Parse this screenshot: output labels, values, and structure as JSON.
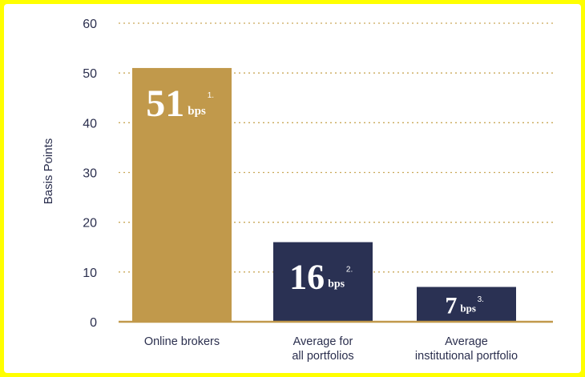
{
  "colors": {
    "border": "#ffff00",
    "gold": "#c1994b",
    "navy": "#2a3153",
    "text": "#2b2f4e",
    "grid": "#c9a857"
  },
  "chart_data": {
    "type": "bar",
    "ylabel": "Basis Points",
    "ylim": [
      0,
      60
    ],
    "yticks": [
      0,
      10,
      20,
      30,
      40,
      50,
      60
    ],
    "grid": true,
    "categories": [
      [
        "Online brokers"
      ],
      [
        "Average for",
        "all portfolios"
      ],
      [
        "Average",
        "institutional portfolio"
      ]
    ],
    "values": [
      51,
      16,
      7
    ],
    "bar_colors": [
      "gold",
      "navy",
      "navy"
    ],
    "data_labels": [
      {
        "value": "51",
        "unit": "bps",
        "note": "1."
      },
      {
        "value": "16",
        "unit": "bps",
        "note": "2."
      },
      {
        "value": "7",
        "unit": "bps",
        "note": "3."
      }
    ]
  }
}
